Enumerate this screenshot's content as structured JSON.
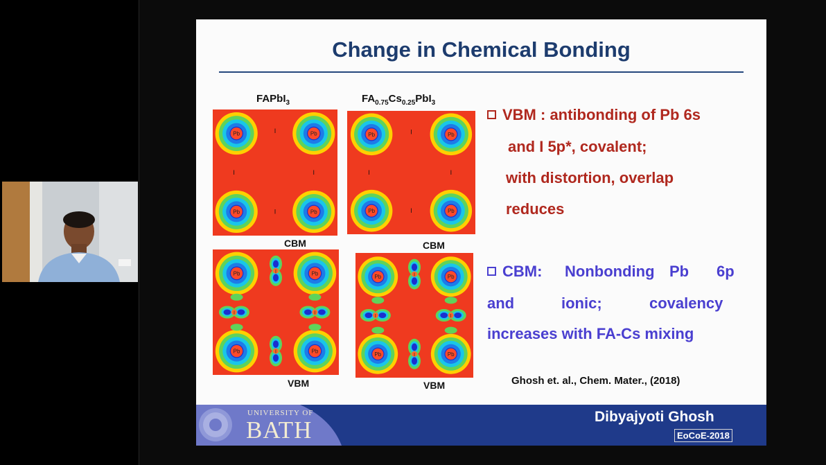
{
  "webcam": {
    "description": "presenter-video"
  },
  "slide": {
    "title": "Change in Chemical Bonding",
    "label_left_base": "FAPbI",
    "label_left_sub": "3",
    "label_right_parts": [
      "FA",
      "0.75",
      "Cs",
      "0.25",
      "PbI",
      "3"
    ],
    "cbm": "CBM",
    "vbm": "VBM",
    "atom_pb": "Pb",
    "atom_i": "I",
    "vbm_lines": [
      "VBM : antibonding of Pb 6s",
      "and I 5p*, covalent;",
      "with distortion, overlap",
      "reduces"
    ],
    "cbm_lines": [
      "CBM:",
      "Nonbonding",
      "Pb",
      "6p",
      "and",
      "ionic;",
      "covalency",
      "increases with FA-Cs mixing"
    ],
    "reference": "Ghosh et. al., Chem. Mater., (2018)"
  },
  "footer": {
    "university_top": "UNIVERSITY OF",
    "university_main": "BATH",
    "presenter": "Dibyajyoti Ghosh",
    "event": "EoCoE-2018"
  },
  "colors": {
    "title": "#1d3c6e",
    "vbm_text": "#b0281e",
    "cbm_text": "#4a3fd0",
    "footer_bg": "#1f3a8a",
    "heatmap_bg": "#ef3a1f"
  }
}
